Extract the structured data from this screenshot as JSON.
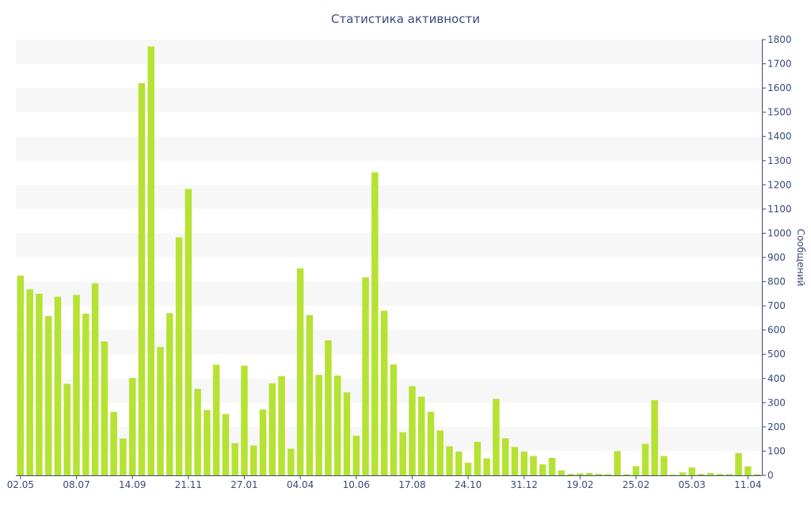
{
  "chart_data": {
    "type": "bar",
    "title": "Статистика активности",
    "xlabel": "",
    "ylabel": "Сообщений",
    "ylim": [
      0,
      1800
    ],
    "yticks": [
      0,
      100,
      200,
      300,
      400,
      500,
      600,
      700,
      800,
      900,
      1000,
      1100,
      1200,
      1300,
      1400,
      1500,
      1600,
      1700,
      1800
    ],
    "xtick_labels": [
      {
        "index": 0,
        "label": "02.05"
      },
      {
        "index": 6,
        "label": "08.07"
      },
      {
        "index": 12,
        "label": "14.09"
      },
      {
        "index": 18,
        "label": "21.11"
      },
      {
        "index": 24,
        "label": "27.01"
      },
      {
        "index": 30,
        "label": "04.04"
      },
      {
        "index": 36,
        "label": "10.06"
      },
      {
        "index": 42,
        "label": "17.08"
      },
      {
        "index": 48,
        "label": "24.10"
      },
      {
        "index": 54,
        "label": "31.12"
      },
      {
        "index": 60,
        "label": "19.02"
      },
      {
        "index": 66,
        "label": "25.02"
      },
      {
        "index": 72,
        "label": "05.03"
      },
      {
        "index": 78,
        "label": "11.04"
      }
    ],
    "values": [
      825,
      768,
      750,
      658,
      738,
      378,
      745,
      668,
      793,
      553,
      262,
      152,
      402,
      1620,
      1772,
      530,
      670,
      983,
      1183,
      357,
      270,
      457,
      253,
      133,
      453,
      123,
      272,
      380,
      410,
      110,
      855,
      662,
      415,
      558,
      412,
      343,
      163,
      818,
      1252,
      680,
      458,
      178,
      368,
      325,
      262,
      185,
      120,
      98,
      52,
      138,
      70,
      316,
      153,
      117,
      98,
      80,
      45,
      72,
      20,
      6,
      8,
      10,
      6,
      5,
      100,
      5,
      38,
      130,
      310,
      80,
      3,
      12,
      32,
      6,
      10,
      6,
      5,
      92,
      37,
      5
    ],
    "grid": "alternating horizontal bands",
    "legend": "none",
    "colors": {
      "bar": "#b6e233",
      "band": "#f7f7f7",
      "axis": "#3b4a7a",
      "text": "#3b4a7a"
    }
  }
}
